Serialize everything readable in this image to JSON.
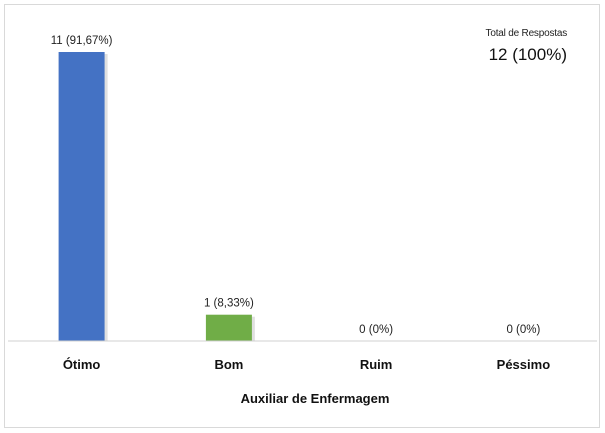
{
  "chart_data": {
    "type": "bar",
    "categories": [
      "Ótimo",
      "Bom",
      "Ruim",
      "Péssimo"
    ],
    "values": [
      11,
      1,
      0,
      0
    ],
    "data_labels": [
      "11 (91,67%)",
      "1 (8,33%)",
      "0 (0%)",
      "0 (0%)"
    ],
    "colors": [
      "#4472c4",
      "#70ad47",
      "#a5a5a5",
      "#a5a5a5"
    ],
    "xlabel": "Auxiliar de Enfermagem",
    "ylim": [
      0,
      11
    ],
    "grid": false,
    "annotation": {
      "title": "Total de Respostas",
      "value": "12 (100%)"
    }
  }
}
